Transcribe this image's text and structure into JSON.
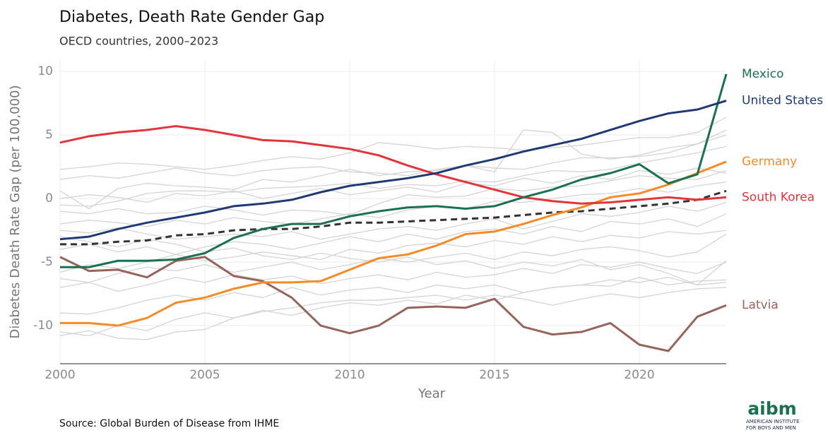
{
  "chart_data": {
    "type": "line",
    "title": "Diabetes, Death Rate Gender Gap",
    "subtitle": "OECD countries, 2000–2023",
    "x_label": "Year",
    "y_label": "Diabetes Death Rate Gap (per 100,000)",
    "source": "Source: Global Burden of Disease from IHME",
    "logo": {
      "mark": "aibm",
      "line1": "AMERICAN INSTITUTE",
      "line2": "FOR BOYS AND MEN"
    },
    "x": [
      2000,
      2001,
      2002,
      2003,
      2004,
      2005,
      2006,
      2007,
      2008,
      2009,
      2010,
      2011,
      2012,
      2013,
      2014,
      2015,
      2016,
      2017,
      2018,
      2019,
      2020,
      2021,
      2022,
      2023
    ],
    "xlim": [
      2000,
      2023
    ],
    "xticks": [
      2000,
      2005,
      2010,
      2015,
      2020
    ],
    "ylim": [
      -13,
      10.9
    ],
    "yticks": [
      -10,
      -5,
      0,
      5,
      10
    ],
    "grid": true,
    "series": [
      {
        "color": "#d4d4d4",
        "values": [
          2.3,
          2.5,
          2.8,
          2.7,
          2.5,
          2.3,
          2.6,
          3.0,
          3.3,
          3.1,
          3.6,
          4.4,
          4.2,
          3.9,
          4.1,
          4.0,
          3.8,
          4.0,
          4.2,
          4.5,
          4.8,
          4.8,
          5.2,
          6.4
        ]
      },
      {
        "color": "#d4d4d4",
        "values": [
          1.5,
          1.8,
          1.6,
          2.0,
          2.4,
          2.0,
          1.8,
          2.2,
          2.4,
          2.5,
          2.1,
          2.0,
          1.8,
          2.3,
          2.6,
          2.1,
          5.4,
          5.2,
          3.5,
          3.1,
          3.4,
          4.0,
          4.3,
          5.0
        ]
      },
      {
        "color": "#d4d4d4",
        "values": [
          0.6,
          -0.8,
          0.8,
          1.2,
          1.0,
          0.9,
          0.7,
          1.5,
          1.3,
          1.8,
          2.3,
          1.8,
          2.1,
          2.2,
          2.6,
          2.4,
          2.3,
          2.8,
          3.2,
          3.2,
          3.3,
          3.6,
          4.3,
          5.4
        ]
      },
      {
        "color": "#d4d4d4",
        "values": [
          -0.5,
          -0.6,
          -0.2,
          0.4,
          0.6,
          0.6,
          0.5,
          0.8,
          0.9,
          1.0,
          1.2,
          0.8,
          1.1,
          1.0,
          1.4,
          1.3,
          1.8,
          2.2,
          2.1,
          2.3,
          2.8,
          3.2,
          3.6,
          4.1
        ]
      },
      {
        "color": "#d4d4d4",
        "values": [
          -1.0,
          -1.2,
          -0.8,
          -1.2,
          -1.1,
          -0.6,
          -0.9,
          -1.3,
          -0.9,
          -1.0,
          -1.3,
          -0.4,
          0.3,
          0.1,
          0.2,
          0.8,
          0.6,
          0.9,
          1.0,
          1.4,
          1.8,
          1.6,
          1.5,
          2.2
        ]
      },
      {
        "color": "#d4d4d4",
        "values": [
          -2.0,
          -1.7,
          -1.9,
          -2.2,
          -1.7,
          -2.0,
          -1.5,
          -1.8,
          -2.0,
          -1.6,
          -1.2,
          -1.5,
          -0.9,
          -0.6,
          -0.8,
          -0.2,
          -0.3,
          0.0,
          0.3,
          0.4,
          0.8,
          0.5,
          1.0,
          1.3
        ]
      },
      {
        "color": "#d4d4d4",
        "values": [
          -2.5,
          -2.7,
          -2.3,
          -2.8,
          -3.2,
          -3.0,
          -2.8,
          -3.0,
          -2.6,
          -3.2,
          -2.8,
          -2.4,
          -2.2,
          -2.5,
          -2.0,
          -1.6,
          -2.4,
          -1.8,
          -1.2,
          -1.4,
          -1.1,
          -0.6,
          -1.0,
          -0.3
        ]
      },
      {
        "color": "#d4d4d4",
        "values": [
          -4.0,
          -3.6,
          -4.2,
          -3.8,
          -4.4,
          -3.8,
          -3.4,
          -3.6,
          -4.0,
          -3.5,
          -3.0,
          -3.4,
          -2.8,
          -3.2,
          -2.6,
          -2.4,
          -2.8,
          -2.2,
          -2.6,
          -1.8,
          -2.0,
          -1.6,
          -2.2,
          -1.2
        ]
      },
      {
        "color": "#d4d4d4",
        "values": [
          -5.8,
          -5.2,
          -5.5,
          -5.0,
          -4.4,
          -4.9,
          -4.6,
          -4.2,
          -4.5,
          -4.8,
          -4.0,
          -4.3,
          -3.7,
          -3.5,
          -3.8,
          -3.3,
          -3.6,
          -3.0,
          -3.4,
          -2.9,
          -3.1,
          -2.6,
          -2.8,
          -2.5
        ]
      },
      {
        "color": "#d4d4d4",
        "values": [
          -6.3,
          -6.6,
          -5.9,
          -5.4,
          -5.7,
          -5.2,
          -5.8,
          -5.4,
          -5.0,
          -5.6,
          -5.2,
          -4.7,
          -5.0,
          -4.6,
          -4.3,
          -4.8,
          -4.2,
          -4.5,
          -4.0,
          -3.8,
          -4.1,
          -4.6,
          -4.2,
          -2.8
        ]
      },
      {
        "color": "#d4d4d4",
        "values": [
          -7.0,
          -6.6,
          -7.3,
          -6.8,
          -6.2,
          -6.6,
          -6.0,
          -6.4,
          -6.1,
          -6.7,
          -6.3,
          -6.0,
          -6.4,
          -5.8,
          -6.2,
          -6.0,
          -5.5,
          -5.9,
          -5.2,
          -5.4,
          -5.0,
          -5.5,
          -5.9,
          -5.0
        ]
      },
      {
        "color": "#d4d4d4",
        "values": [
          -9.0,
          -9.1,
          -8.6,
          -8.0,
          -7.6,
          -8.0,
          -7.4,
          -7.8,
          -7.0,
          -7.6,
          -7.2,
          -7.0,
          -7.4,
          -6.8,
          -7.1,
          -6.8,
          -7.4,
          -7.0,
          -6.8,
          -6.4,
          -6.6,
          -6.2,
          -6.8,
          -6.6
        ]
      },
      {
        "color": "#d4d4d4",
        "values": [
          -10.8,
          -10.4,
          -11.0,
          -11.1,
          -10.5,
          -10.3,
          -9.4,
          -8.9,
          -8.6,
          -8.2,
          -8.0,
          -8.0,
          -7.8,
          -7.6,
          -8.0,
          -7.6,
          -7.9,
          -8.4,
          -7.9,
          -7.5,
          -7.8,
          -7.4,
          -7.1,
          -7.0
        ]
      },
      {
        "color": "#d4d4d4",
        "values": [
          -10.5,
          -10.8,
          -10.0,
          -10.4,
          -9.5,
          -9.0,
          -9.4,
          -8.8,
          -9.2,
          -8.6,
          -8.2,
          -8.4,
          -8.0,
          -8.3,
          -7.6,
          -8.0,
          -7.4,
          -7.0,
          -6.8,
          -6.9,
          -6.2,
          -6.8,
          -6.5,
          -6.4
        ]
      },
      {
        "color": "#d4d4d4",
        "values": [
          0.0,
          0.3,
          0.1,
          -0.3,
          0.4,
          0.2,
          0.6,
          0.0,
          0.4,
          0.8,
          0.3,
          0.6,
          0.9,
          0.5,
          1.2,
          1.0,
          1.6,
          1.2,
          1.8,
          1.5,
          2.2,
          1.9,
          2.4,
          2.0
        ]
      },
      {
        "color": "#d4d4d4",
        "values": [
          -3.0,
          -3.4,
          -3.8,
          -3.2,
          -3.6,
          -4.2,
          -3.9,
          -4.5,
          -4.8,
          -4.3,
          -4.7,
          -5.0,
          -4.6,
          -5.2,
          -4.9,
          -5.5,
          -5.0,
          -5.3,
          -4.8,
          -5.6,
          -5.2,
          -5.9,
          -6.8,
          -4.9
        ]
      },
      {
        "color": "#333333",
        "dashed": true,
        "values": [
          -3.6,
          -3.6,
          -3.4,
          -3.3,
          -2.9,
          -2.8,
          -2.5,
          -2.4,
          -2.4,
          -2.2,
          -1.9,
          -1.9,
          -1.8,
          -1.7,
          -1.6,
          -1.5,
          -1.3,
          -1.1,
          -1.0,
          -0.8,
          -0.6,
          -0.4,
          -0.1,
          0.6
        ]
      },
      {
        "name": "Latvia",
        "color": "#96645a",
        "values": [
          -4.6,
          -5.7,
          -5.6,
          -6.2,
          -4.9,
          -4.6,
          -6.1,
          -6.5,
          -7.8,
          -10.0,
          -10.6,
          -10.0,
          -8.6,
          -8.5,
          -8.6,
          -7.9,
          -10.1,
          -10.7,
          -10.5,
          -9.8,
          -11.5,
          -12.0,
          -9.3,
          -8.4
        ]
      },
      {
        "name": "Germany",
        "color": "#f58b27",
        "values": [
          -9.8,
          -9.8,
          -10.0,
          -9.4,
          -8.2,
          -7.8,
          -7.1,
          -6.6,
          -6.6,
          -6.5,
          -5.6,
          -4.7,
          -4.4,
          -3.7,
          -2.8,
          -2.6,
          -2.0,
          -1.3,
          -0.7,
          0.1,
          0.4,
          1.1,
          2.0,
          2.9
        ]
      },
      {
        "name": "South Korea",
        "color": "#e3343b",
        "values": [
          4.4,
          4.9,
          5.2,
          5.4,
          5.7,
          5.4,
          5.0,
          4.6,
          4.5,
          4.2,
          3.9,
          3.4,
          2.6,
          1.9,
          1.3,
          0.7,
          0.1,
          -0.2,
          -0.4,
          -0.3,
          -0.1,
          0.1,
          -0.1,
          0.1
        ]
      },
      {
        "name": "Mexico",
        "color": "#1b7050",
        "values": [
          -5.4,
          -5.4,
          -4.9,
          -4.9,
          -4.8,
          -4.3,
          -3.1,
          -2.4,
          -2.0,
          -2.0,
          -1.4,
          -1.0,
          -0.7,
          -0.6,
          -0.8,
          -0.6,
          0.1,
          0.7,
          1.5,
          2.0,
          2.7,
          1.2,
          1.9,
          9.8
        ]
      },
      {
        "name": "United States",
        "color": "#1f3a73",
        "values": [
          -3.2,
          -3.0,
          -2.4,
          -1.9,
          -1.5,
          -1.1,
          -0.6,
          -0.4,
          -0.1,
          0.5,
          1.0,
          1.3,
          1.6,
          2.0,
          2.6,
          3.1,
          3.7,
          4.2,
          4.7,
          5.4,
          6.1,
          6.7,
          7.0,
          7.7
        ]
      }
    ]
  }
}
